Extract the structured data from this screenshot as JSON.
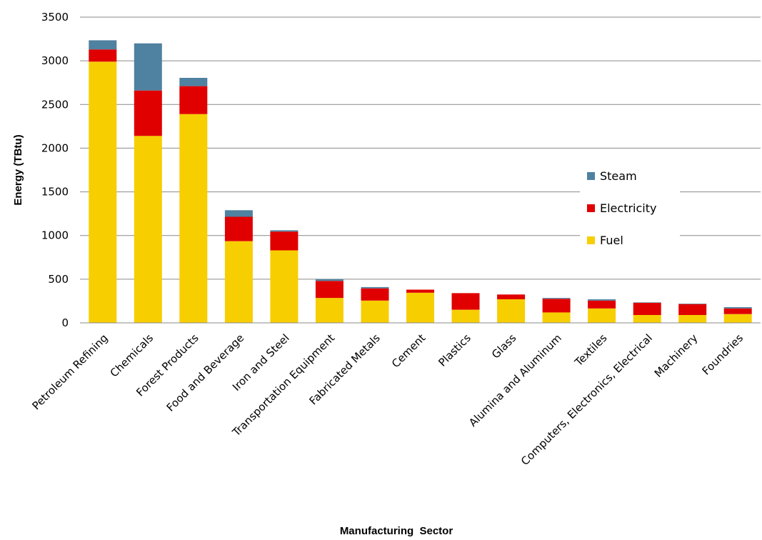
{
  "chart_data": {
    "type": "bar",
    "stacked": true,
    "categories": [
      "Petroleum Refining",
      "Chemicals",
      "Forest Products",
      "Food and Beverage",
      "Iron and Steel",
      "Transportation Equipment",
      "Fabricated Metals",
      "Cement",
      "Plastics",
      "Glass",
      "Alumina and Aluminum",
      "Textiles",
      "Computers, Electronics, Electrical",
      "Machinery",
      "Foundries"
    ],
    "series": [
      {
        "name": "Fuel",
        "color": "#F7CE00",
        "values": [
          2990,
          2140,
          2390,
          935,
          830,
          285,
          255,
          345,
          150,
          270,
          120,
          165,
          90,
          90,
          100
        ]
      },
      {
        "name": "Electricity",
        "color": "#E00000",
        "values": [
          140,
          520,
          320,
          280,
          215,
          195,
          140,
          35,
          190,
          55,
          155,
          90,
          140,
          125,
          65
        ]
      },
      {
        "name": "Steam",
        "color": "#4F81A0",
        "values": [
          105,
          540,
          95,
          75,
          15,
          20,
          15,
          0,
          0,
          0,
          10,
          15,
          5,
          5,
          15
        ]
      }
    ],
    "xlabel": "Manufacturing  Sector",
    "ylabel": "Energy (TBtu)",
    "ylim": [
      0,
      3500
    ],
    "yticks": [
      "0",
      "500",
      "1000",
      "1500",
      "2000",
      "2500",
      "3000",
      "3500"
    ],
    "grid": true,
    "legend": [
      "Steam",
      "Electricity",
      "Fuel"
    ],
    "legend_position": "right"
  }
}
